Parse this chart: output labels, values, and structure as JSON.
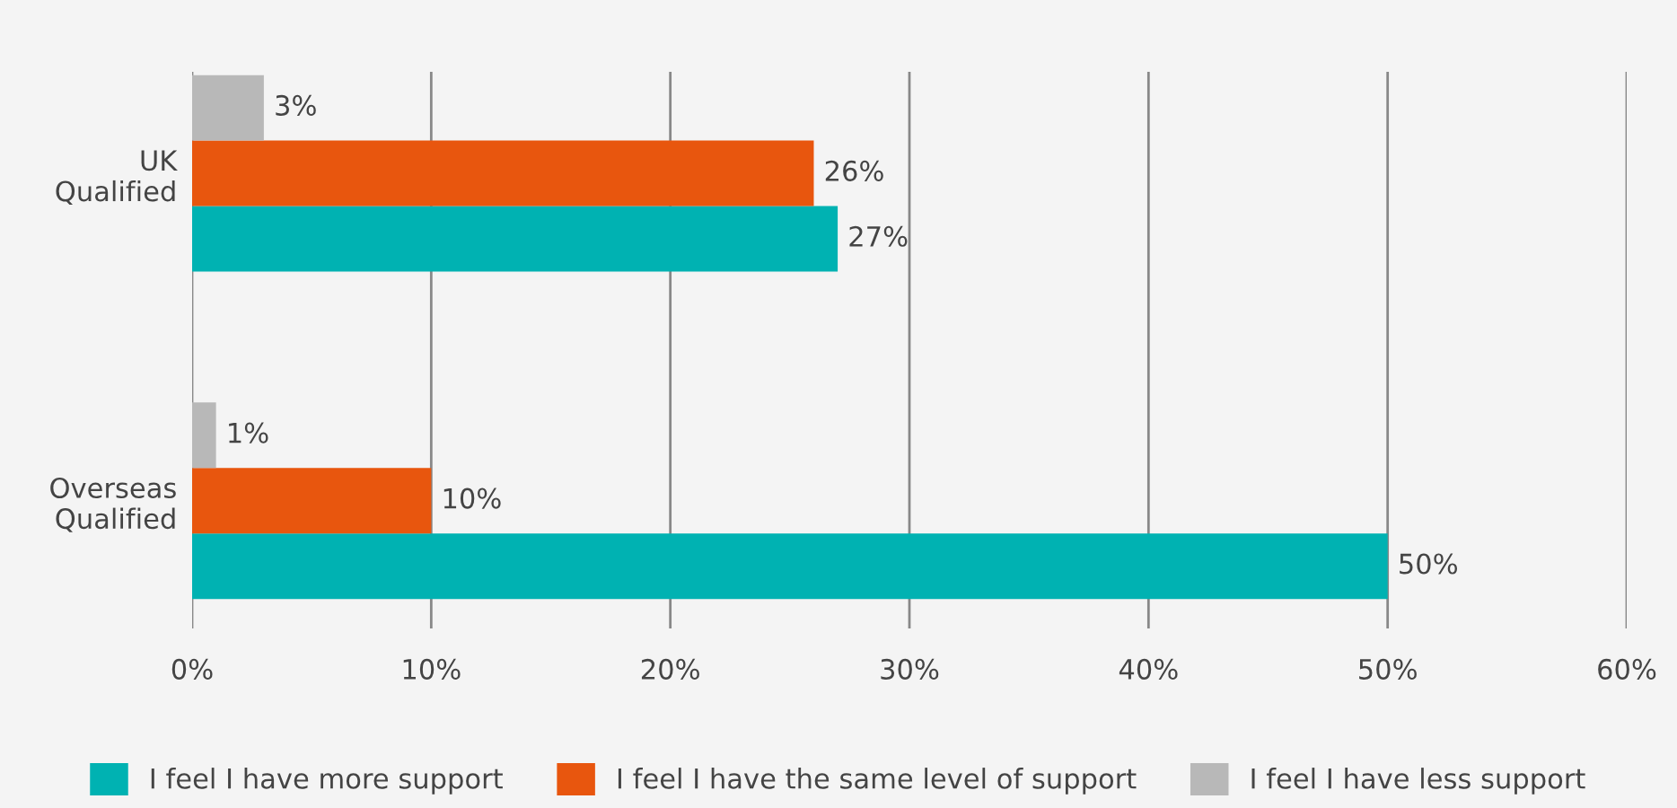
{
  "chart_data": {
    "type": "bar",
    "orientation": "horizontal",
    "categories": [
      "UK\nQualified",
      "Overseas\nQualified"
    ],
    "series": [
      {
        "name": "I feel I have more support",
        "color": "#00b2b2",
        "values": [
          27,
          50
        ],
        "value_labels": [
          "27%",
          "50%"
        ]
      },
      {
        "name": "I feel I have the same level of support",
        "color": "#e8560e",
        "values": [
          26,
          10
        ],
        "value_labels": [
          "26%",
          "10%"
        ]
      },
      {
        "name": "I feel I have less support",
        "color": "#b8b8b8",
        "values": [
          3,
          1
        ],
        "value_labels": [
          "3%",
          "1%"
        ]
      }
    ],
    "xlim": [
      0,
      60
    ],
    "xticks": [
      {
        "value": 0,
        "label": "0%"
      },
      {
        "value": 10,
        "label": "10%"
      },
      {
        "value": 20,
        "label": "20%"
      },
      {
        "value": 30,
        "label": "30%"
      },
      {
        "value": 40,
        "label": "40%"
      },
      {
        "value": 50,
        "label": "50%"
      },
      {
        "value": 60,
        "label": "60%"
      }
    ],
    "grid": "x",
    "legend": "bottom"
  }
}
